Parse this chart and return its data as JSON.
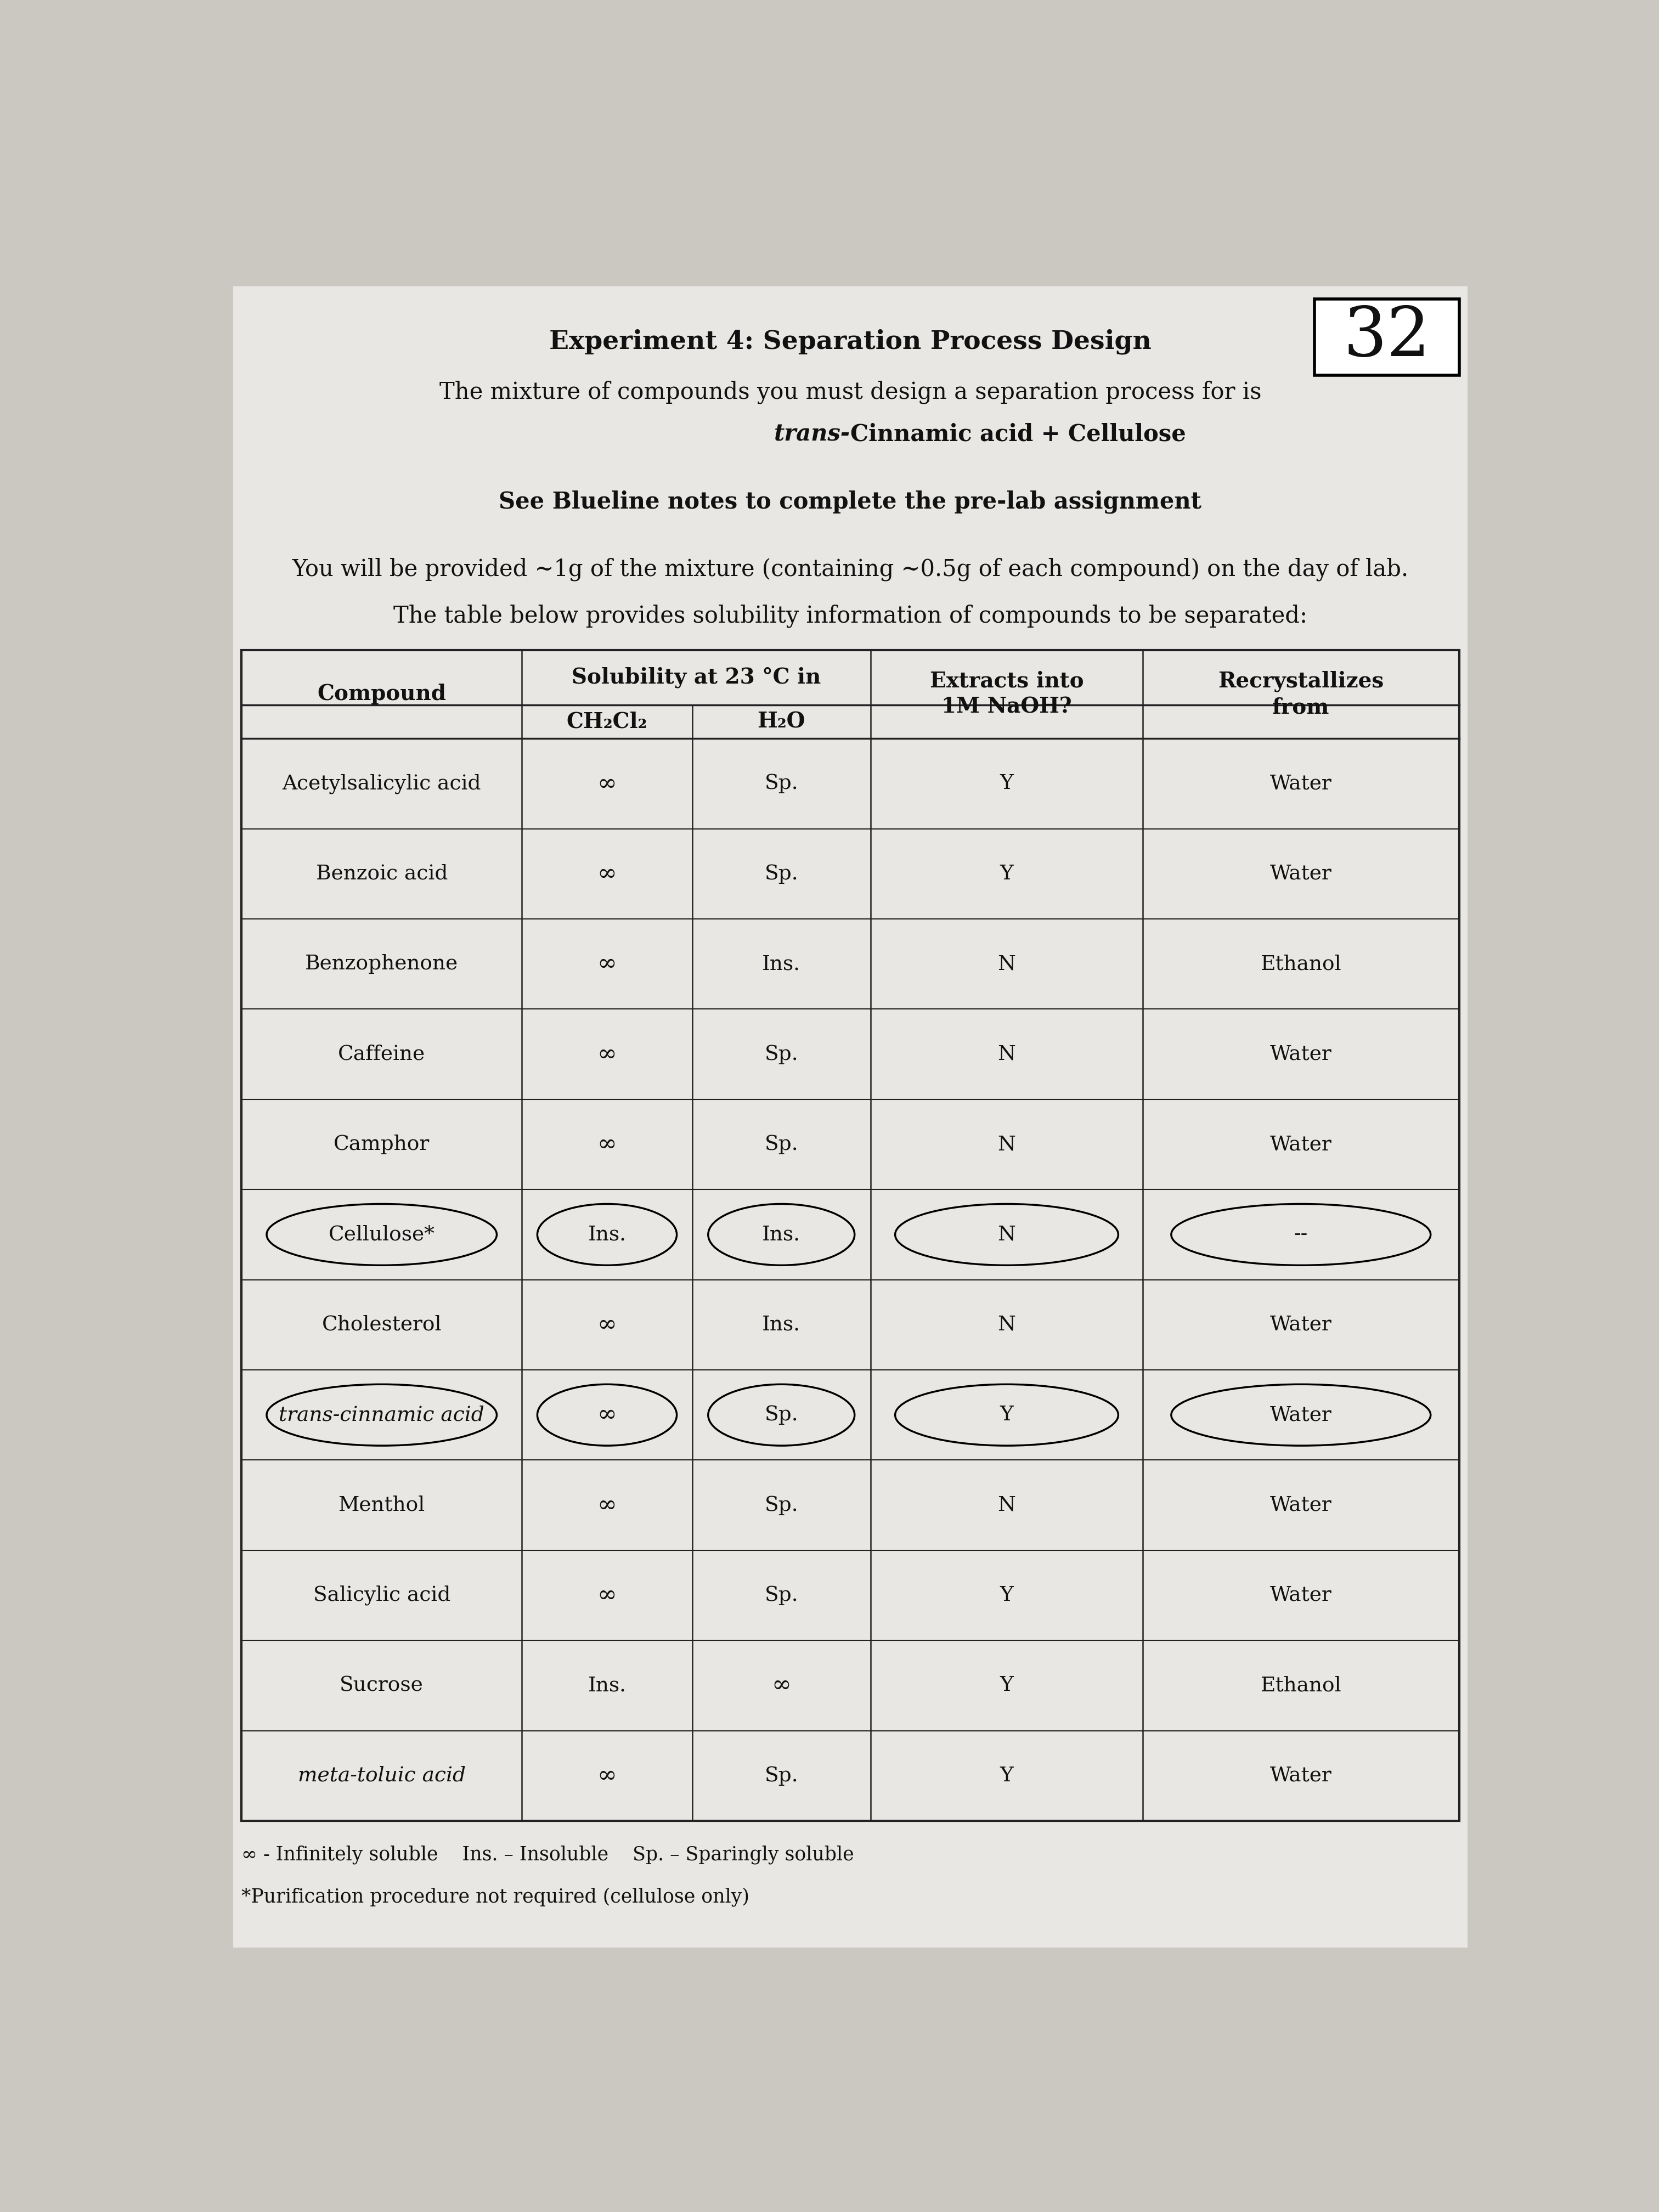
{
  "page_number": "32",
  "title": "Experiment 4: Separation Process Design",
  "subtitle_normal": "The mixture of compounds you must design a separation process for is",
  "subtitle_bold_italic": "trans-",
  "subtitle_bold_rest": "Cinnamic acid + Cellulose",
  "instruction": "See Blueline notes to complete the pre-lab assignment",
  "provision_text": "You will be provided ~1g of the mixture (containing ~0.5g of each compound) on the day of lab.",
  "table_intro": "The table below provides solubility information of compounds to be separated:",
  "compounds": [
    "Acetylsalicylic acid",
    "Benzoic acid",
    "Benzophenone",
    "Caffeine",
    "Camphor",
    "Cellulose*",
    "Cholesterol",
    "trans-cinnamic acid",
    "Menthol",
    "Salicylic acid",
    "Sucrose",
    "meta-toluic acid"
  ],
  "ch2cl2": [
    "∞",
    "∞",
    "∞",
    "∞",
    "∞",
    "Ins.",
    "∞",
    "∞",
    "∞",
    "∞",
    "Ins.",
    "∞"
  ],
  "h2o": [
    "Sp.",
    "Sp.",
    "Ins.",
    "Sp.",
    "Sp.",
    "Ins.",
    "Ins.",
    "Sp.",
    "Sp.",
    "Sp.",
    "∞",
    "Sp."
  ],
  "naoh": [
    "Y",
    "Y",
    "N",
    "N",
    "N",
    "N",
    "N",
    "Y",
    "N",
    "Y",
    "Y",
    "Y"
  ],
  "recryst": [
    "Water",
    "Water",
    "Ethanol",
    "Water",
    "Water",
    "--",
    "Water",
    "Water",
    "Water",
    "Water",
    "Ethanol",
    "Water"
  ],
  "cellulose_row_i": 5,
  "cinnamic_row_i": 7,
  "legend_text": "∞ - Infinitely soluble    Ins. – Insoluble    Sp. – Sparingly soluble",
  "footnote": "*Purification procedure not required (cellulose only)",
  "bg_color": "#cbc8c2",
  "paper_color": "#e8e7e4",
  "text_color": "#111111",
  "table_line_color": "#222222",
  "font_size_title": 34,
  "font_size_body": 30,
  "font_size_table": 27,
  "font_size_header": 28,
  "font_size_number": 90,
  "font_size_legend": 25
}
